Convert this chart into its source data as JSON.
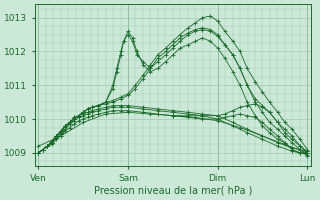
{
  "background_color": "#cce8d8",
  "grid_color": "#a0c8b0",
  "line_color": "#1a6b2a",
  "xlabel": "Pression niveau de la mer( hPa )",
  "ylim": [
    1008.6,
    1013.4
  ],
  "yticks": [
    1009,
    1010,
    1011,
    1012,
    1013
  ],
  "xtick_labels": [
    "Ven",
    "Sam",
    "Dim",
    "Lun"
  ],
  "xtick_positions": [
    0,
    1,
    2,
    3
  ],
  "figsize": [
    3.2,
    2.0
  ],
  "dpi": 100,
  "series": [
    {
      "x": [
        0.0,
        0.05,
        0.1,
        0.15,
        0.2,
        0.25,
        0.3,
        0.35,
        0.4,
        0.45,
        0.5,
        0.55,
        0.6,
        0.67,
        0.75,
        0.83,
        0.92,
        1.0,
        1.08,
        1.17,
        1.25,
        1.33,
        1.42,
        1.5,
        1.58,
        1.67,
        1.75,
        1.83,
        1.92,
        2.0,
        2.08,
        2.17,
        2.25,
        2.33,
        2.42,
        2.5,
        2.58,
        2.67,
        2.75,
        2.83,
        2.92,
        3.0
      ],
      "y": [
        1009.0,
        1009.1,
        1009.2,
        1009.3,
        1009.5,
        1009.6,
        1009.8,
        1009.9,
        1010.0,
        1010.1,
        1010.2,
        1010.3,
        1010.35,
        1010.4,
        1010.5,
        1010.55,
        1010.65,
        1010.75,
        1011.0,
        1011.3,
        1011.6,
        1011.9,
        1012.1,
        1012.3,
        1012.5,
        1012.7,
        1012.85,
        1013.0,
        1013.05,
        1012.9,
        1012.6,
        1012.3,
        1012.0,
        1011.5,
        1011.1,
        1010.8,
        1010.5,
        1010.2,
        1009.9,
        1009.7,
        1009.4,
        1009.1
      ]
    },
    {
      "x": [
        0.0,
        0.05,
        0.1,
        0.15,
        0.2,
        0.25,
        0.3,
        0.35,
        0.4,
        0.45,
        0.5,
        0.55,
        0.6,
        0.67,
        0.75,
        0.83,
        0.92,
        1.0,
        1.08,
        1.17,
        1.25,
        1.33,
        1.42,
        1.5,
        1.58,
        1.67,
        1.75,
        1.83,
        1.92,
        2.0,
        2.08,
        2.17,
        2.25,
        2.33,
        2.42,
        2.5,
        2.58,
        2.67,
        2.75,
        2.83,
        2.92,
        3.0
      ],
      "y": [
        1009.0,
        1009.1,
        1009.2,
        1009.3,
        1009.5,
        1009.6,
        1009.7,
        1009.9,
        1010.0,
        1010.1,
        1010.2,
        1010.3,
        1010.35,
        1010.4,
        1010.45,
        1010.5,
        1010.6,
        1010.7,
        1010.9,
        1011.2,
        1011.5,
        1011.8,
        1012.0,
        1012.2,
        1012.4,
        1012.55,
        1012.65,
        1012.7,
        1012.65,
        1012.5,
        1012.2,
        1011.9,
        1011.5,
        1011.0,
        1010.6,
        1010.4,
        1010.2,
        1009.9,
        1009.7,
        1009.5,
        1009.2,
        1009.0
      ]
    },
    {
      "x": [
        0.0,
        0.05,
        0.1,
        0.15,
        0.2,
        0.25,
        0.3,
        0.35,
        0.4,
        0.45,
        0.5,
        0.55,
        0.6,
        0.67,
        0.75,
        0.83,
        0.875,
        0.92,
        0.95,
        1.0,
        1.05,
        1.1,
        1.17,
        1.25,
        1.33,
        1.42,
        1.5,
        1.58,
        1.67,
        1.75,
        1.83,
        1.92,
        2.0,
        2.08,
        2.17,
        2.25,
        2.33,
        2.42,
        2.5,
        2.58,
        2.67,
        2.75,
        2.83,
        2.92,
        3.0
      ],
      "y": [
        1009.0,
        1009.1,
        1009.2,
        1009.35,
        1009.5,
        1009.65,
        1009.8,
        1009.9,
        1010.05,
        1010.1,
        1010.2,
        1010.3,
        1010.35,
        1010.4,
        1010.5,
        1011.0,
        1011.5,
        1012.0,
        1012.3,
        1012.5,
        1012.3,
        1011.9,
        1011.7,
        1011.5,
        1011.7,
        1011.9,
        1012.1,
        1012.3,
        1012.5,
        1012.6,
        1012.65,
        1012.6,
        1012.45,
        1012.2,
        1011.9,
        1011.5,
        1011.0,
        1010.5,
        1010.2,
        1009.9,
        1009.7,
        1009.5,
        1009.3,
        1009.1,
        1008.9
      ]
    },
    {
      "x": [
        0.0,
        0.05,
        0.1,
        0.15,
        0.2,
        0.25,
        0.3,
        0.35,
        0.4,
        0.45,
        0.5,
        0.55,
        0.6,
        0.67,
        0.75,
        0.83,
        0.875,
        0.92,
        0.95,
        1.0,
        1.05,
        1.1,
        1.17,
        1.25,
        1.33,
        1.42,
        1.5,
        1.58,
        1.67,
        1.75,
        1.83,
        1.92,
        2.0,
        2.08,
        2.17,
        2.25,
        2.33,
        2.42,
        2.5,
        2.58,
        2.67,
        2.75,
        2.83,
        2.92,
        3.0
      ],
      "y": [
        1009.0,
        1009.1,
        1009.2,
        1009.35,
        1009.5,
        1009.65,
        1009.8,
        1009.9,
        1010.05,
        1010.1,
        1010.2,
        1010.3,
        1010.35,
        1010.4,
        1010.5,
        1010.9,
        1011.4,
        1011.9,
        1012.3,
        1012.6,
        1012.4,
        1012.0,
        1011.6,
        1011.4,
        1011.5,
        1011.7,
        1011.9,
        1012.1,
        1012.2,
        1012.3,
        1012.4,
        1012.3,
        1012.1,
        1011.8,
        1011.4,
        1011.0,
        1010.5,
        1010.1,
        1009.8,
        1009.6,
        1009.4,
        1009.3,
        1009.1,
        1009.0,
        1009.0
      ]
    },
    {
      "x": [
        0.0,
        0.05,
        0.1,
        0.15,
        0.2,
        0.25,
        0.3,
        0.35,
        0.4,
        0.45,
        0.5,
        0.55,
        0.6,
        0.67,
        0.75,
        0.83,
        0.92,
        1.0,
        1.17,
        1.33,
        1.5,
        1.67,
        1.83,
        2.0,
        2.17,
        2.33,
        2.5,
        2.67,
        2.83,
        3.0
      ],
      "y": [
        1009.0,
        1009.1,
        1009.2,
        1009.3,
        1009.5,
        1009.6,
        1009.8,
        1009.9,
        1010.0,
        1010.1,
        1010.15,
        1010.2,
        1010.25,
        1010.3,
        1010.35,
        1010.4,
        1010.4,
        1010.4,
        1010.35,
        1010.3,
        1010.25,
        1010.2,
        1010.15,
        1010.1,
        1009.9,
        1009.7,
        1009.5,
        1009.3,
        1009.15,
        1009.05
      ]
    },
    {
      "x": [
        0.0,
        0.05,
        0.1,
        0.15,
        0.2,
        0.25,
        0.3,
        0.35,
        0.4,
        0.45,
        0.5,
        0.55,
        0.6,
        0.67,
        0.75,
        0.83,
        0.92,
        1.0,
        1.17,
        1.33,
        1.5,
        1.67,
        1.83,
        2.0,
        2.17,
        2.33,
        2.5,
        2.67,
        2.83,
        3.0
      ],
      "y": [
        1009.0,
        1009.1,
        1009.2,
        1009.3,
        1009.45,
        1009.55,
        1009.7,
        1009.85,
        1009.95,
        1010.05,
        1010.1,
        1010.15,
        1010.2,
        1010.25,
        1010.3,
        1010.35,
        1010.35,
        1010.35,
        1010.3,
        1010.25,
        1010.2,
        1010.15,
        1010.1,
        1010.0,
        1009.8,
        1009.6,
        1009.4,
        1009.2,
        1009.05,
        1008.95
      ]
    },
    {
      "x": [
        0.0,
        0.05,
        0.1,
        0.15,
        0.2,
        0.25,
        0.3,
        0.35,
        0.4,
        0.45,
        0.5,
        0.55,
        0.6,
        0.67,
        0.75,
        0.83,
        0.92,
        1.0,
        1.17,
        1.33,
        1.5,
        1.67,
        1.83,
        2.0,
        2.08,
        2.17,
        2.25,
        2.33,
        2.42,
        2.5,
        2.58,
        2.67,
        2.75,
        2.83,
        2.92,
        3.0
      ],
      "y": [
        1009.0,
        1009.1,
        1009.2,
        1009.25,
        1009.4,
        1009.5,
        1009.65,
        1009.75,
        1009.85,
        1009.95,
        1010.0,
        1010.05,
        1010.1,
        1010.15,
        1010.2,
        1010.25,
        1010.25,
        1010.25,
        1010.2,
        1010.15,
        1010.1,
        1010.05,
        1010.0,
        1010.0,
        1010.05,
        1010.1,
        1010.15,
        1010.1,
        1010.05,
        1009.9,
        1009.7,
        1009.5,
        1009.3,
        1009.1,
        1009.0,
        1009.0
      ]
    },
    {
      "x": [
        0.0,
        0.25,
        0.5,
        0.75,
        1.0,
        1.25,
        1.5,
        1.75,
        2.0,
        2.25,
        2.5,
        2.75,
        3.0
      ],
      "y": [
        1009.2,
        1009.5,
        1009.9,
        1010.15,
        1010.2,
        1010.15,
        1010.1,
        1010.05,
        1009.95,
        1009.75,
        1009.5,
        1009.25,
        1009.0
      ]
    },
    {
      "x": [
        1.5,
        1.67,
        1.83,
        2.0,
        2.08,
        2.17,
        2.25,
        2.33,
        2.42,
        2.5,
        2.58,
        2.67,
        2.75,
        2.83,
        2.92,
        3.0
      ],
      "y": [
        1010.1,
        1010.1,
        1010.1,
        1010.1,
        1010.15,
        1010.25,
        1010.35,
        1010.4,
        1010.45,
        1010.35,
        1010.2,
        1009.9,
        1009.6,
        1009.4,
        1009.2,
        1009.05
      ]
    }
  ]
}
